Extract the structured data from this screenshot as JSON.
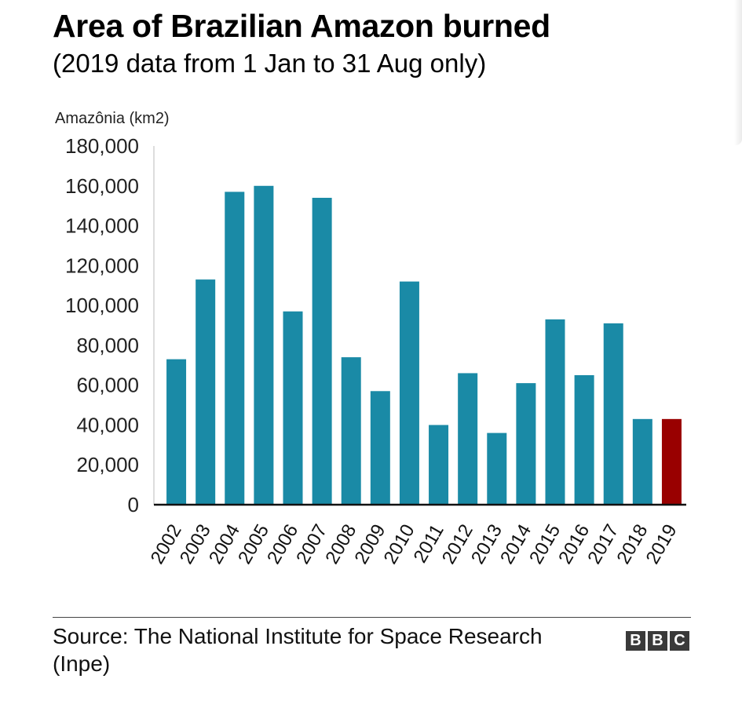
{
  "chart_data": {
    "type": "bar",
    "title": "Area of Brazilian Amazon burned",
    "subtitle": "(2019 data from 1 Jan to 31 Aug only)",
    "ylabel": "Amazônia (km2)",
    "xlabel": "",
    "ylim": [
      0,
      180000
    ],
    "yticks": [
      "0",
      "20,000",
      "40,000",
      "60,000",
      "80,000",
      "100,000",
      "120,000",
      "140,000",
      "160,000",
      "180,000"
    ],
    "ytick_values": [
      0,
      20000,
      40000,
      60000,
      80000,
      100000,
      120000,
      140000,
      160000,
      180000
    ],
    "categories": [
      "2002",
      "2003",
      "2004",
      "2005",
      "2006",
      "2007",
      "2008",
      "2009",
      "2010",
      "2011",
      "2012",
      "2013",
      "2014",
      "2015",
      "2016",
      "2017",
      "2018",
      "2019"
    ],
    "values": [
      73000,
      113000,
      157000,
      160000,
      97000,
      154000,
      74000,
      57000,
      112000,
      40000,
      66000,
      36000,
      61000,
      93000,
      65000,
      91000,
      43000,
      43000
    ],
    "bar_colors": [
      "#1a8aa6",
      "#1a8aa6",
      "#1a8aa6",
      "#1a8aa6",
      "#1a8aa6",
      "#1a8aa6",
      "#1a8aa6",
      "#1a8aa6",
      "#1a8aa6",
      "#1a8aa6",
      "#1a8aa6",
      "#1a8aa6",
      "#1a8aa6",
      "#1a8aa6",
      "#1a8aa6",
      "#1a8aa6",
      "#1a8aa6",
      "#990000"
    ],
    "grid": false,
    "legend": "none"
  },
  "footer": {
    "source": "Source: The National Institute for Space Research (Inpe)",
    "logo_letters": [
      "B",
      "B",
      "C"
    ]
  }
}
